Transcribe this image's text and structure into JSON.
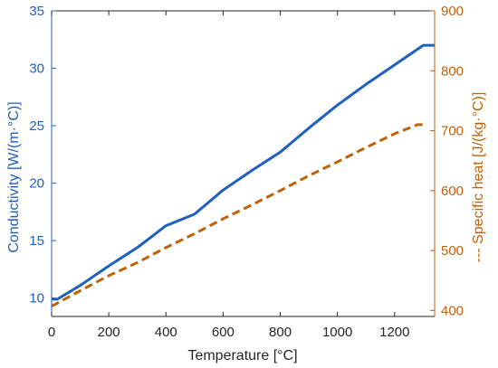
{
  "chart_data": {
    "type": "line",
    "xlabel": "Temperature [°C]",
    "xlim": [
      0,
      1340
    ],
    "xticks": [
      0,
      200,
      400,
      600,
      800,
      1000,
      1200
    ],
    "xtick_labels": [
      "0",
      "200",
      "400",
      "600",
      "800",
      "1000",
      "1200"
    ],
    "y_left": {
      "label": "Conductivity [W/(m·°C)]",
      "lim": [
        8.4,
        35
      ],
      "ticks": [
        10,
        15,
        20,
        25,
        30,
        35
      ],
      "tick_labels": [
        "10",
        "15",
        "20",
        "25",
        "30",
        "35"
      ],
      "color": "#1f5fbf"
    },
    "y_right": {
      "label": "--- Specific heat [J/(kg·°C)]",
      "lim": [
        390,
        900
      ],
      "ticks": [
        400,
        500,
        600,
        700,
        800,
        900
      ],
      "tick_labels": [
        "400",
        "500",
        "600",
        "700",
        "800",
        "900"
      ],
      "color": "#c0620a"
    },
    "series": [
      {
        "axis": "left",
        "style": "solid",
        "color": "#1f5fbf",
        "x": [
          0,
          20,
          100,
          200,
          300,
          400,
          500,
          600,
          700,
          800,
          900,
          1000,
          1100,
          1200,
          1300,
          1340
        ],
        "y": [
          9.9,
          9.9,
          11.1,
          12.8,
          14.4,
          16.3,
          17.3,
          19.4,
          21.1,
          22.7,
          24.8,
          26.8,
          28.6,
          30.3,
          32.0,
          32.0
        ]
      },
      {
        "axis": "right",
        "style": "dashed",
        "color": "#c0620a",
        "x": [
          0,
          100,
          200,
          300,
          400,
          500,
          600,
          700,
          800,
          900,
          1000,
          1100,
          1200,
          1280,
          1310
        ],
        "y": [
          407,
          433,
          458,
          480,
          505,
          528,
          553,
          576,
          600,
          625,
          648,
          672,
          695,
          710,
          710
        ]
      }
    ],
    "grid": false
  }
}
